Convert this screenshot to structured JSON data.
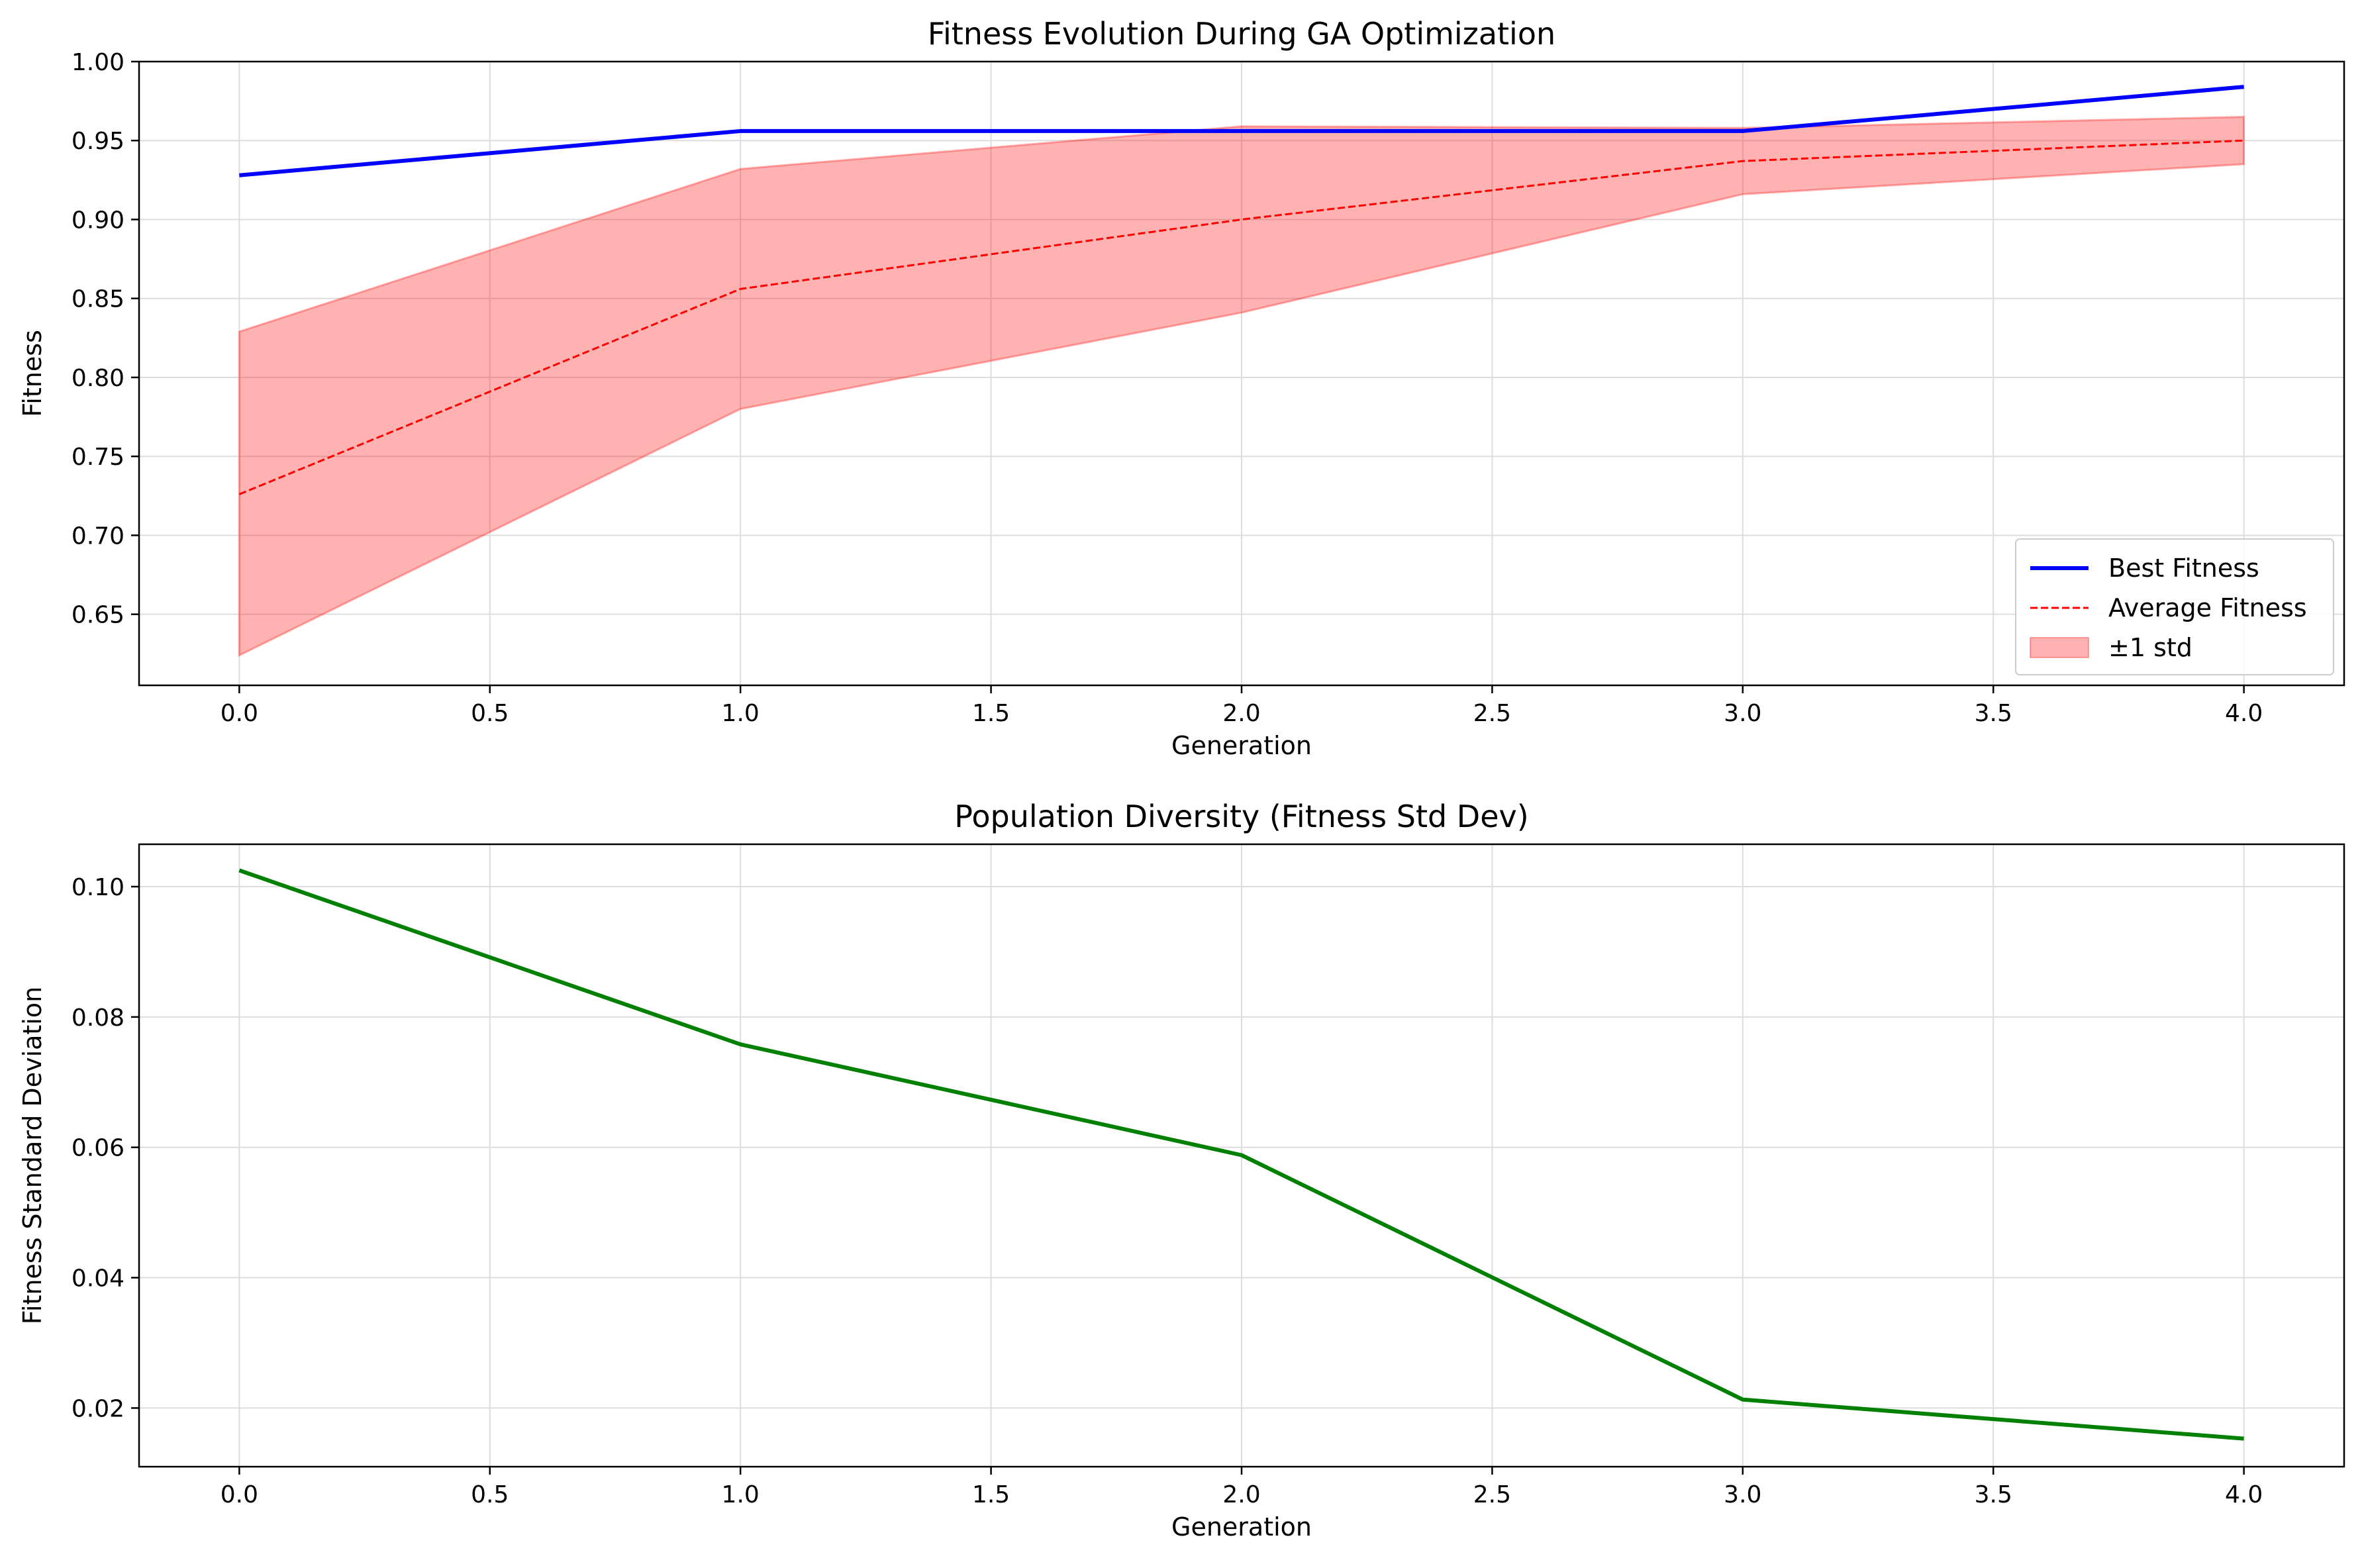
{
  "chart_data": [
    {
      "type": "line",
      "title": "Fitness Evolution During GA Optimization",
      "xlabel": "Generation",
      "ylabel": "Fitness",
      "xlim": [
        -0.2,
        4.2
      ],
      "ylim": [
        0.605,
        1.0
      ],
      "xticks": [
        "0.0",
        "0.5",
        "1.0",
        "1.5",
        "2.0",
        "2.5",
        "3.0",
        "3.5",
        "4.0"
      ],
      "yticks": [
        "0.65",
        "0.70",
        "0.75",
        "0.80",
        "0.85",
        "0.90",
        "0.95",
        "1.00"
      ],
      "grid": true,
      "legend_position": "lower right",
      "x": [
        0,
        1,
        2,
        3,
        4
      ],
      "series": [
        {
          "name": "Best Fitness",
          "values": [
            0.928,
            0.956,
            0.956,
            0.956,
            0.984
          ],
          "color": "#0000ff",
          "style": "solid"
        },
        {
          "name": "Average Fitness",
          "values": [
            0.726,
            0.856,
            0.9,
            0.937,
            0.95
          ],
          "color": "#ff0000",
          "style": "dashed"
        }
      ],
      "band": {
        "name": "±1 std",
        "lower": [
          0.624,
          0.78,
          0.841,
          0.916,
          0.935
        ],
        "upper": [
          0.829,
          0.932,
          0.959,
          0.958,
          0.965
        ],
        "color": "#ff0000"
      }
    },
    {
      "type": "line",
      "title": "Population Diversity (Fitness Std Dev)",
      "xlabel": "Generation",
      "ylabel": "Fitness Standard Deviation",
      "xlim": [
        -0.2,
        4.2
      ],
      "ylim": [
        0.011,
        0.1065
      ],
      "xticks": [
        "0.0",
        "0.5",
        "1.0",
        "1.5",
        "2.0",
        "2.5",
        "3.0",
        "3.5",
        "4.0"
      ],
      "yticks": [
        "0.02",
        "0.04",
        "0.06",
        "0.08",
        "0.10"
      ],
      "grid": true,
      "x": [
        0,
        1,
        2,
        3,
        4
      ],
      "series": [
        {
          "name": "",
          "values": [
            0.1025,
            0.0758,
            0.0588,
            0.0213,
            0.0153
          ],
          "color": "#008000",
          "style": "solid"
        }
      ]
    }
  ]
}
